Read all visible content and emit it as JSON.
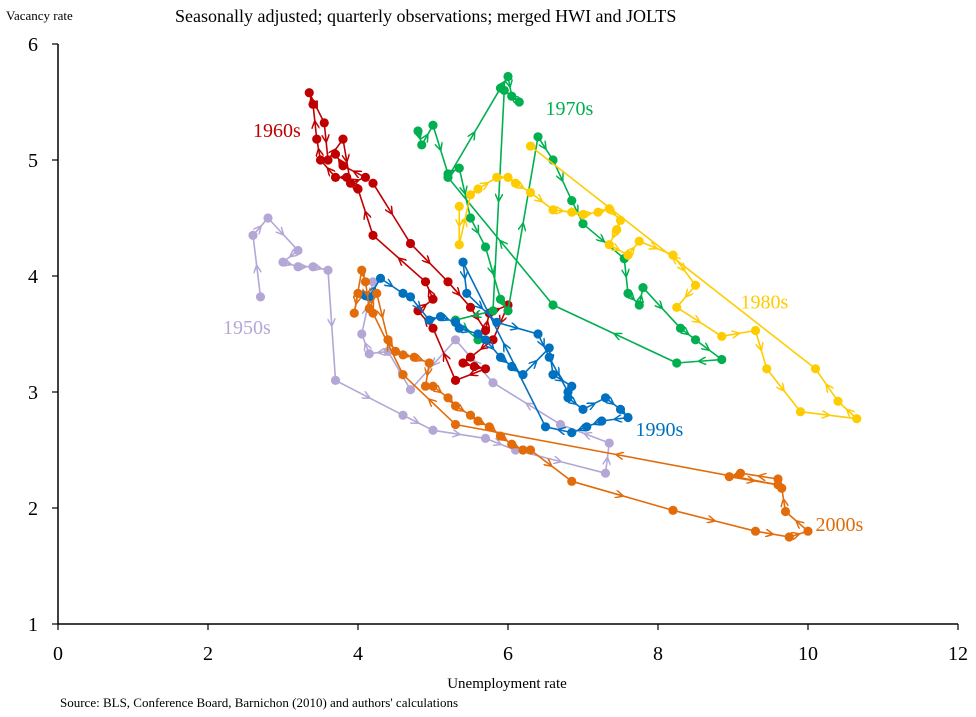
{
  "chart_data": {
    "type": "scatter",
    "title": "Seasonally adjusted; quarterly observations; merged HWI and JOLTS",
    "ylabel": "Vacancy rate",
    "xlabel": "Unemployment rate",
    "source": "Source: BLS, Conference Board, Barnichon (2010) and authors' calculations",
    "xlim": [
      0,
      12
    ],
    "ylim": [
      1,
      6
    ],
    "xticks": [
      "0",
      "2",
      "4",
      "6",
      "8",
      "10",
      "12"
    ],
    "yticks": [
      "1",
      "2",
      "3",
      "4",
      "5",
      "6"
    ],
    "grid": false,
    "series": [
      {
        "name": "1950s",
        "color": "#b4a7d6",
        "points": [
          [
            2.7,
            3.82
          ],
          [
            2.6,
            4.35
          ],
          [
            2.8,
            4.5
          ],
          [
            3.2,
            4.22
          ],
          [
            3.0,
            4.12
          ],
          [
            3.2,
            4.08
          ],
          [
            3.4,
            4.08
          ],
          [
            3.6,
            4.05
          ],
          [
            3.7,
            3.1
          ],
          [
            4.6,
            2.8
          ],
          [
            5.0,
            2.67
          ],
          [
            5.7,
            2.6
          ],
          [
            6.1,
            2.5
          ],
          [
            7.3,
            2.3
          ],
          [
            7.35,
            2.56
          ],
          [
            6.7,
            2.72
          ],
          [
            5.8,
            3.08
          ],
          [
            5.3,
            3.45
          ],
          [
            4.7,
            3.02
          ],
          [
            4.4,
            3.35
          ],
          [
            4.15,
            3.33
          ],
          [
            4.05,
            3.5
          ],
          [
            4.2,
            3.95
          ]
        ]
      },
      {
        "name": "1960s",
        "color": "#c00000",
        "points": [
          [
            4.2,
            4.8
          ],
          [
            4.7,
            4.28
          ],
          [
            5.2,
            3.95
          ],
          [
            5.5,
            3.73
          ],
          [
            5.7,
            3.53
          ],
          [
            5.75,
            3.68
          ],
          [
            6.0,
            3.75
          ],
          [
            5.8,
            3.45
          ],
          [
            5.5,
            3.3
          ],
          [
            5.4,
            3.25
          ],
          [
            5.55,
            3.22
          ],
          [
            5.7,
            3.2
          ],
          [
            5.3,
            3.1
          ],
          [
            5.0,
            3.55
          ],
          [
            4.8,
            3.7
          ],
          [
            5.0,
            3.8
          ],
          [
            4.9,
            3.95
          ],
          [
            4.2,
            4.35
          ],
          [
            4.0,
            4.75
          ],
          [
            3.85,
            4.85
          ],
          [
            3.7,
            4.85
          ],
          [
            3.5,
            5.0
          ],
          [
            3.45,
            5.18
          ],
          [
            3.4,
            5.48
          ],
          [
            3.35,
            5.58
          ],
          [
            3.55,
            5.32
          ],
          [
            3.6,
            5.0
          ],
          [
            3.8,
            5.18
          ],
          [
            3.9,
            4.8
          ],
          [
            4.1,
            4.85
          ],
          [
            3.8,
            4.95
          ],
          [
            3.7,
            5.05
          ]
        ]
      },
      {
        "name": "1970s",
        "color": "#00b050",
        "points": [
          [
            4.8,
            5.25
          ],
          [
            4.85,
            5.13
          ],
          [
            5.0,
            5.3
          ],
          [
            5.2,
            4.88
          ],
          [
            5.35,
            4.93
          ],
          [
            5.5,
            4.5
          ],
          [
            5.7,
            4.25
          ],
          [
            5.9,
            3.8
          ],
          [
            6.0,
            3.7
          ],
          [
            6.4,
            5.2
          ],
          [
            6.6,
            5.0
          ],
          [
            6.85,
            4.65
          ],
          [
            7.0,
            4.45
          ],
          [
            7.55,
            4.15
          ],
          [
            7.6,
            3.85
          ],
          [
            7.75,
            3.75
          ],
          [
            7.8,
            3.9
          ],
          [
            8.3,
            3.55
          ],
          [
            8.5,
            3.45
          ],
          [
            8.85,
            3.28
          ],
          [
            8.25,
            3.25
          ],
          [
            6.6,
            3.75
          ],
          [
            5.2,
            4.85
          ],
          [
            5.9,
            5.62
          ],
          [
            6.0,
            5.72
          ],
          [
            6.05,
            5.55
          ],
          [
            6.15,
            5.5
          ],
          [
            5.95,
            5.6
          ],
          [
            5.8,
            3.7
          ],
          [
            5.3,
            3.62
          ],
          [
            5.6,
            3.45
          ]
        ]
      },
      {
        "name": "1980s",
        "color": "#ffcc00",
        "points": [
          [
            5.35,
            4.6
          ],
          [
            5.35,
            4.27
          ],
          [
            5.5,
            4.7
          ],
          [
            5.6,
            4.75
          ],
          [
            5.85,
            4.85
          ],
          [
            6.0,
            4.85
          ],
          [
            6.1,
            4.8
          ],
          [
            6.3,
            4.72
          ],
          [
            6.6,
            4.57
          ],
          [
            6.85,
            4.55
          ],
          [
            7.0,
            4.53
          ],
          [
            7.2,
            4.55
          ],
          [
            7.35,
            4.58
          ],
          [
            7.5,
            4.48
          ],
          [
            7.45,
            4.4
          ],
          [
            7.35,
            4.27
          ],
          [
            7.6,
            4.18
          ],
          [
            7.75,
            4.3
          ],
          [
            8.2,
            4.18
          ],
          [
            8.5,
            3.92
          ],
          [
            8.25,
            3.73
          ],
          [
            8.85,
            3.48
          ],
          [
            9.3,
            3.53
          ],
          [
            9.45,
            3.2
          ],
          [
            9.9,
            2.83
          ],
          [
            10.65,
            2.77
          ],
          [
            10.4,
            2.92
          ],
          [
            10.1,
            3.2
          ],
          [
            6.3,
            5.12
          ]
        ]
      },
      {
        "name": "1990s",
        "color": "#0070c0",
        "points": [
          [
            4.1,
            3.83
          ],
          [
            4.15,
            3.82
          ],
          [
            4.3,
            3.98
          ],
          [
            4.6,
            3.85
          ],
          [
            4.7,
            3.82
          ],
          [
            4.95,
            3.62
          ],
          [
            5.1,
            3.65
          ],
          [
            5.3,
            3.6
          ],
          [
            5.35,
            3.55
          ],
          [
            5.6,
            3.5
          ],
          [
            5.7,
            3.45
          ],
          [
            5.9,
            3.3
          ],
          [
            6.05,
            3.22
          ],
          [
            6.2,
            3.15
          ],
          [
            6.55,
            3.38
          ],
          [
            6.6,
            3.15
          ],
          [
            6.85,
            3.05
          ],
          [
            6.8,
            2.95
          ],
          [
            7.0,
            2.85
          ],
          [
            7.3,
            2.95
          ],
          [
            7.5,
            2.85
          ],
          [
            7.6,
            2.78
          ],
          [
            7.25,
            2.75
          ],
          [
            7.05,
            2.7
          ],
          [
            6.85,
            2.65
          ],
          [
            6.5,
            2.7
          ],
          [
            5.4,
            4.12
          ],
          [
            5.45,
            3.85
          ],
          [
            5.85,
            3.6
          ],
          [
            6.4,
            3.5
          ],
          [
            6.55,
            3.3
          ],
          [
            6.8,
            3.0
          ]
        ]
      },
      {
        "name": "2000s",
        "color": "#e36c0a",
        "points": [
          [
            4.0,
            3.85
          ],
          [
            3.95,
            3.68
          ],
          [
            4.05,
            4.05
          ],
          [
            4.1,
            3.95
          ],
          [
            4.15,
            3.72
          ],
          [
            4.25,
            3.85
          ],
          [
            4.4,
            3.45
          ],
          [
            4.5,
            3.35
          ],
          [
            4.6,
            3.32
          ],
          [
            4.75,
            3.3
          ],
          [
            4.95,
            3.25
          ],
          [
            4.9,
            3.05
          ],
          [
            5.0,
            3.05
          ],
          [
            5.2,
            2.95
          ],
          [
            5.3,
            2.88
          ],
          [
            5.5,
            2.8
          ],
          [
            5.6,
            2.75
          ],
          [
            5.75,
            2.7
          ],
          [
            5.9,
            2.62
          ],
          [
            6.05,
            2.55
          ],
          [
            6.2,
            2.5
          ],
          [
            6.3,
            2.5
          ],
          [
            6.85,
            2.23
          ],
          [
            8.2,
            1.98
          ],
          [
            9.3,
            1.8
          ],
          [
            9.75,
            1.75
          ],
          [
            10.0,
            1.8
          ],
          [
            9.7,
            1.97
          ],
          [
            9.65,
            2.17
          ],
          [
            9.6,
            2.25
          ],
          [
            9.1,
            2.3
          ],
          [
            8.95,
            2.27
          ],
          [
            9.6,
            2.2
          ],
          [
            5.3,
            2.72
          ],
          [
            4.6,
            3.15
          ],
          [
            4.2,
            3.68
          ]
        ]
      }
    ],
    "labels": [
      {
        "text": "1950s",
        "series": "1950s",
        "x": 2.2,
        "y": 3.5
      },
      {
        "text": "1960s",
        "series": "1960s",
        "x": 2.6,
        "y": 5.2
      },
      {
        "text": "1970s",
        "series": "1970s",
        "x": 6.5,
        "y": 5.39
      },
      {
        "text": "1980s",
        "series": "1980s",
        "x": 9.1,
        "y": 3.72
      },
      {
        "text": "1990s",
        "series": "1990s",
        "x": 7.7,
        "y": 2.62
      },
      {
        "text": "2000s",
        "series": "2000s",
        "x": 10.1,
        "y": 1.8
      }
    ]
  }
}
